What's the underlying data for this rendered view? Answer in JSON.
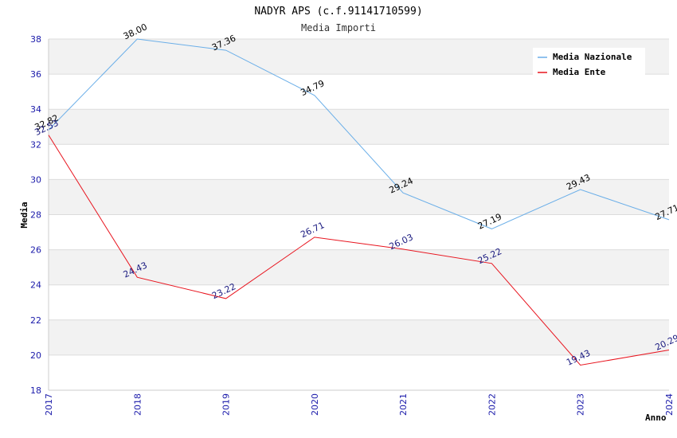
{
  "chart_data": {
    "type": "line",
    "title": "NADYR APS (c.f.91141710599)",
    "subtitle": "Media Importi",
    "xlabel": "Anno",
    "ylabel": "Media",
    "categories": [
      "2017",
      "2018",
      "2019",
      "2020",
      "2021",
      "2022",
      "2023",
      "2024"
    ],
    "ylim": [
      18,
      38
    ],
    "yticks": [
      18,
      20,
      22,
      24,
      26,
      28,
      30,
      32,
      34,
      36,
      38
    ],
    "legend_position": "top-right",
    "series": [
      {
        "name": "Media Nazionale",
        "color": "#6aaee8",
        "values": [
          32.82,
          38.0,
          37.36,
          34.79,
          29.24,
          27.19,
          29.43,
          27.71
        ],
        "labels": [
          "32.82",
          "38.00",
          "37.36",
          "34.79",
          "29.24",
          "27.19",
          "29.43",
          "27.71"
        ]
      },
      {
        "name": "Media Ente",
        "color": "#e8141e",
        "values": [
          32.53,
          24.43,
          23.22,
          26.71,
          26.03,
          25.22,
          19.43,
          20.29
        ],
        "labels": [
          "32.53",
          "24.43",
          "23.22",
          "26.71",
          "26.03",
          "25.22",
          "19.43",
          "20.29"
        ]
      }
    ]
  }
}
